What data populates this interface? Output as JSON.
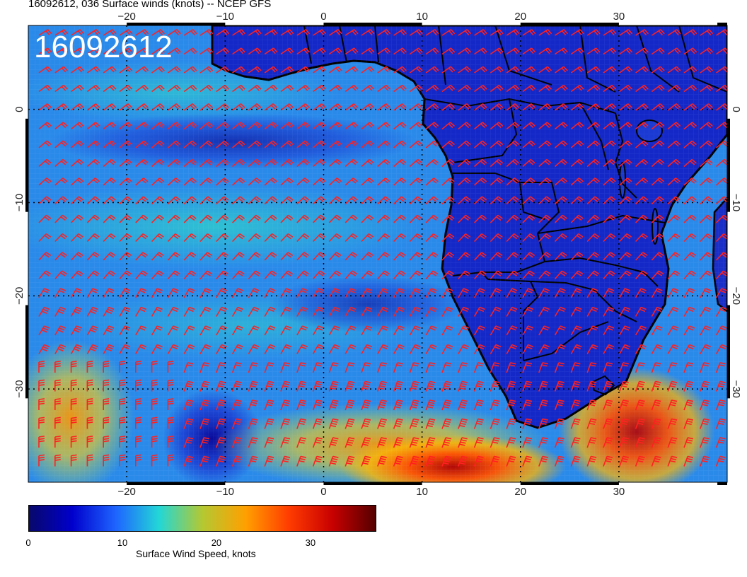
{
  "title": "16092612, 036 Surface winds (knots) -- NCEP GFS",
  "stamp": "16092612",
  "colorbar": {
    "label": "Surface Wind Speed, knots",
    "ticks": [
      "0",
      "10",
      "20",
      "30"
    ],
    "tick_values": [
      0,
      10,
      20,
      30
    ],
    "range": [
      0,
      37
    ],
    "colors": [
      "#08086b",
      "#0000cc",
      "#1e64ff",
      "#22d7d7",
      "#b4c832",
      "#ffa000",
      "#ff3c00",
      "#c80000",
      "#550000"
    ]
  },
  "map": {
    "lon_range": [
      -30,
      41
    ],
    "lat_range": [
      -40,
      9
    ],
    "lon_ticks": [
      {
        "value": -20,
        "label": "−20"
      },
      {
        "value": -10,
        "label": "−10"
      },
      {
        "value": 0,
        "label": "0"
      },
      {
        "value": 10,
        "label": "10"
      },
      {
        "value": 20,
        "label": "20"
      },
      {
        "value": 30,
        "label": "30"
      }
    ],
    "lat_ticks": [
      {
        "value": 0,
        "label": "0"
      },
      {
        "value": -10,
        "label": "−10"
      },
      {
        "value": -20,
        "label": "−20"
      },
      {
        "value": -30,
        "label": "−30"
      }
    ],
    "ocean_color": "#2a8aea",
    "land_color": "#1428c8",
    "barb_color": "#ff2020"
  }
}
